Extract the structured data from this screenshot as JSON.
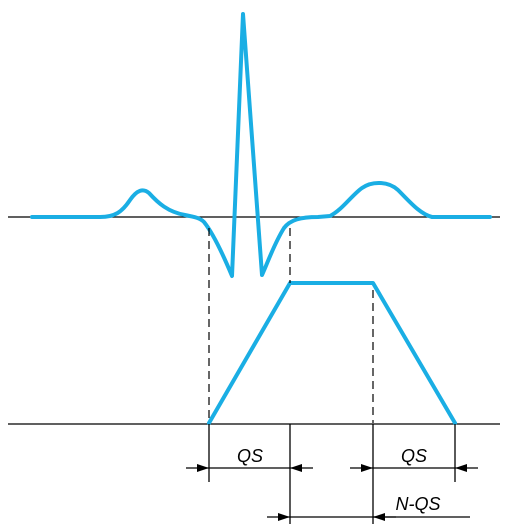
{
  "colors": {
    "waveform": "#1aaee4",
    "lines": "#000000",
    "background": "#ffffff"
  },
  "labels": {
    "qs_left": "QS",
    "qs_right": "QS",
    "n_qs": "N-QS"
  }
}
